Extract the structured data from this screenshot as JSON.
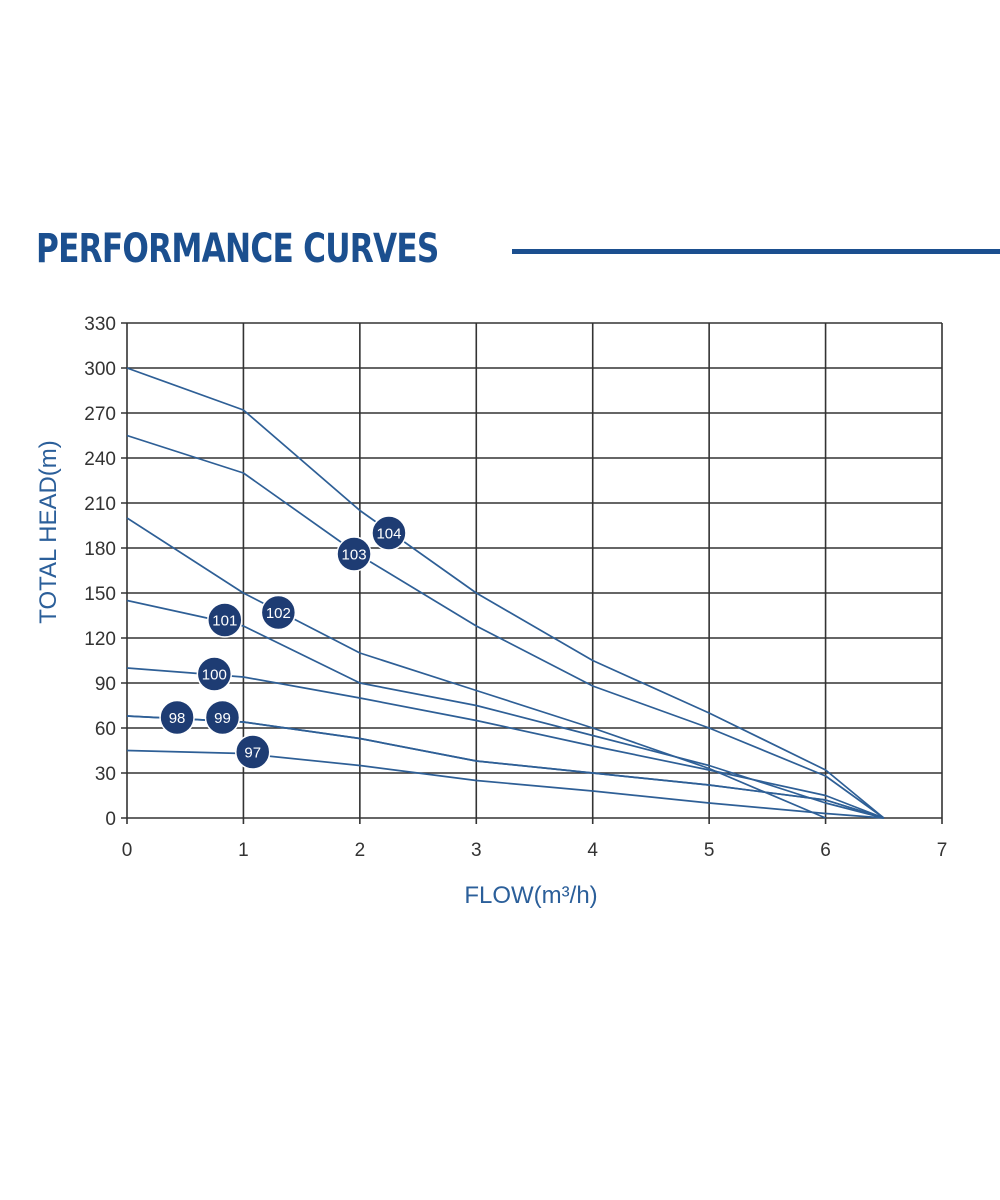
{
  "header": {
    "title": "PERFORMANCE CURVES"
  },
  "colors": {
    "brand": "#1b4f8f",
    "curve": "#2e5f96",
    "grid": "#333333",
    "badge": "#1e3c73"
  },
  "chart_data": {
    "type": "line",
    "title": "PERFORMANCE CURVES",
    "xlabel": "FLOW(m³/h)",
    "ylabel": "TOTAL HEAD(m)",
    "xlim": [
      0,
      7
    ],
    "ylim": [
      0,
      330
    ],
    "xticks": [
      0,
      1,
      2,
      3,
      4,
      5,
      6,
      7
    ],
    "yticks": [
      0,
      30,
      60,
      90,
      120,
      150,
      180,
      210,
      240,
      270,
      300,
      330
    ],
    "grid": true,
    "series": [
      {
        "name": "97",
        "label_at": [
          1.08,
          44
        ],
        "points": [
          [
            0,
            45
          ],
          [
            1,
            43
          ],
          [
            2,
            35
          ],
          [
            3,
            25
          ],
          [
            4,
            18
          ],
          [
            5,
            10
          ],
          [
            6,
            3
          ],
          [
            6.5,
            0
          ]
        ]
      },
      {
        "name": "98",
        "label_at": [
          0.43,
          67
        ],
        "points": [
          [
            0,
            68
          ],
          [
            1,
            64
          ],
          [
            2,
            53
          ],
          [
            3,
            38
          ],
          [
            4,
            30
          ],
          [
            5,
            22
          ],
          [
            6,
            12
          ],
          [
            6.5,
            0
          ]
        ]
      },
      {
        "name": "99",
        "label_at": [
          0.82,
          67
        ],
        "points": [
          [
            0,
            68
          ],
          [
            1,
            64
          ],
          [
            2,
            53
          ],
          [
            3,
            38
          ],
          [
            4,
            30
          ],
          [
            5,
            22
          ],
          [
            6,
            12
          ],
          [
            6.5,
            0
          ]
        ]
      },
      {
        "name": "100",
        "label_at": [
          0.75,
          96
        ],
        "points": [
          [
            0,
            100
          ],
          [
            1,
            94
          ],
          [
            2,
            80
          ],
          [
            3,
            65
          ],
          [
            4,
            48
          ],
          [
            5,
            32
          ],
          [
            6,
            15
          ],
          [
            6.5,
            0
          ]
        ]
      },
      {
        "name": "101",
        "label_at": [
          0.84,
          132
        ],
        "points": [
          [
            0,
            145
          ],
          [
            1,
            128
          ],
          [
            2,
            90
          ],
          [
            3,
            75
          ],
          [
            4,
            55
          ],
          [
            5,
            35
          ],
          [
            6,
            10
          ],
          [
            6.5,
            0
          ]
        ]
      },
      {
        "name": "102",
        "label_at": [
          1.3,
          137
        ],
        "points": [
          [
            0,
            200
          ],
          [
            1,
            150
          ],
          [
            2,
            110
          ],
          [
            3,
            85
          ],
          [
            4,
            60
          ],
          [
            5,
            33
          ],
          [
            6,
            0
          ]
        ]
      },
      {
        "name": "103",
        "label_at": [
          1.95,
          176
        ],
        "points": [
          [
            0,
            255
          ],
          [
            1,
            230
          ],
          [
            2,
            175
          ],
          [
            3,
            128
          ],
          [
            4,
            88
          ],
          [
            5,
            60
          ],
          [
            6,
            28
          ],
          [
            6.5,
            0
          ]
        ]
      },
      {
        "name": "104",
        "label_at": [
          2.25,
          190
        ],
        "points": [
          [
            0,
            300
          ],
          [
            1,
            272
          ],
          [
            2,
            205
          ],
          [
            3,
            150
          ],
          [
            4,
            105
          ],
          [
            5,
            70
          ],
          [
            6,
            32
          ],
          [
            6.5,
            0
          ]
        ]
      }
    ]
  }
}
